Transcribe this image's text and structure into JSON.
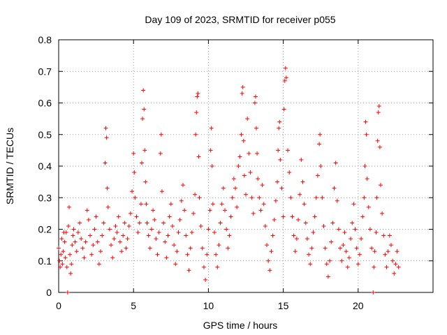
{
  "chart_data": {
    "type": "scatter",
    "title": "Day 109 of 2023, SRMTID for receiver p055",
    "xlabel": "GPS time / hours",
    "ylabel": "SRMTID / TECUs",
    "xlim": [
      0,
      25
    ],
    "ylim": [
      0,
      0.8
    ],
    "xticks": [
      0,
      5,
      10,
      15,
      20
    ],
    "xtick_labels": [
      "0",
      "5",
      "10",
      "15",
      "20"
    ],
    "yticks": [
      0,
      0.1,
      0.2,
      0.3,
      0.4,
      0.5,
      0.6,
      0.7,
      0.8
    ],
    "ytick_labels": [
      "0",
      "0.1",
      "0.2",
      "0.3",
      "0.4",
      "0.5",
      "0.6",
      "0.7",
      "0.8"
    ],
    "grid": true,
    "marker": "+",
    "color": "#ff0000",
    "series": [
      {
        "name": "SRMTID",
        "points": [
          [
            0.0,
            0.14
          ],
          [
            0.05,
            0.1
          ],
          [
            0.1,
            0.08
          ],
          [
            0.15,
            0.12
          ],
          [
            0.2,
            0.17
          ],
          [
            0.25,
            0.09
          ],
          [
            0.3,
            0.13
          ],
          [
            0.35,
            0.19
          ],
          [
            0.4,
            0.16
          ],
          [
            0.45,
            0.11
          ],
          [
            0.5,
            0.19
          ],
          [
            0.55,
            0.08
          ],
          [
            0.6,
            0.0
          ],
          [
            0.65,
            0.21
          ],
          [
            0.7,
            0.27
          ],
          [
            0.75,
            0.12
          ],
          [
            0.8,
            0.06
          ],
          [
            0.85,
            0.09
          ],
          [
            0.9,
            0.15
          ],
          [
            0.95,
            0.18
          ],
          [
            1.0,
            0.2
          ],
          [
            1.1,
            0.16
          ],
          [
            1.2,
            0.13
          ],
          [
            1.3,
            0.19
          ],
          [
            1.4,
            0.22
          ],
          [
            1.5,
            0.17
          ],
          [
            1.6,
            0.14
          ],
          [
            1.7,
            0.11
          ],
          [
            1.8,
            0.16
          ],
          [
            1.9,
            0.26
          ],
          [
            2.0,
            0.23
          ],
          [
            2.1,
            0.18
          ],
          [
            2.2,
            0.12
          ],
          [
            2.3,
            0.15
          ],
          [
            2.4,
            0.2
          ],
          [
            2.5,
            0.24
          ],
          [
            2.6,
            0.16
          ],
          [
            2.7,
            0.09
          ],
          [
            2.8,
            0.13
          ],
          [
            2.9,
            0.18
          ],
          [
            3.0,
            0.22
          ],
          [
            3.1,
            0.41
          ],
          [
            3.15,
            0.52
          ],
          [
            3.2,
            0.49
          ],
          [
            3.25,
            0.33
          ],
          [
            3.3,
            0.27
          ],
          [
            3.4,
            0.2
          ],
          [
            3.5,
            0.15
          ],
          [
            3.6,
            0.11
          ],
          [
            3.7,
            0.17
          ],
          [
            3.8,
            0.21
          ],
          [
            3.9,
            0.19
          ],
          [
            4.0,
            0.24
          ],
          [
            4.1,
            0.16
          ],
          [
            4.2,
            0.13
          ],
          [
            4.3,
            0.18
          ],
          [
            4.4,
            0.22
          ],
          [
            4.5,
            0.14
          ],
          [
            4.6,
            0.17
          ],
          [
            4.7,
            0.21
          ],
          [
            4.8,
            0.25
          ],
          [
            4.9,
            0.32
          ],
          [
            5.0,
            0.44
          ],
          [
            5.05,
            0.38
          ],
          [
            5.1,
            0.3
          ],
          [
            5.2,
            0.24
          ],
          [
            5.3,
            0.19
          ],
          [
            5.4,
            0.22
          ],
          [
            5.5,
            0.28
          ],
          [
            5.55,
            0.41
          ],
          [
            5.6,
            0.55
          ],
          [
            5.65,
            0.64
          ],
          [
            5.7,
            0.58
          ],
          [
            5.75,
            0.45
          ],
          [
            5.8,
            0.35
          ],
          [
            5.85,
            0.28
          ],
          [
            5.9,
            0.22
          ],
          [
            6.0,
            0.18
          ],
          [
            6.1,
            0.14
          ],
          [
            6.2,
            0.2
          ],
          [
            6.3,
            0.26
          ],
          [
            6.4,
            0.23
          ],
          [
            6.5,
            0.17
          ],
          [
            6.6,
            0.12
          ],
          [
            6.7,
            0.19
          ],
          [
            6.8,
            0.44
          ],
          [
            6.85,
            0.5
          ],
          [
            6.9,
            0.32
          ],
          [
            7.0,
            0.22
          ],
          [
            7.1,
            0.16
          ],
          [
            7.2,
            0.11
          ],
          [
            7.3,
            0.18
          ],
          [
            7.4,
            0.24
          ],
          [
            7.5,
            0.28
          ],
          [
            7.6,
            0.21
          ],
          [
            7.7,
            0.15
          ],
          [
            7.8,
            0.09
          ],
          [
            7.9,
            0.13
          ],
          [
            8.0,
            0.19
          ],
          [
            8.1,
            0.23
          ],
          [
            8.2,
            0.29
          ],
          [
            8.3,
            0.34
          ],
          [
            8.4,
            0.26
          ],
          [
            8.5,
            0.18
          ],
          [
            8.6,
            0.12
          ],
          [
            8.7,
            0.07
          ],
          [
            8.8,
            0.14
          ],
          [
            8.9,
            0.19
          ],
          [
            9.0,
            0.25
          ],
          [
            9.1,
            0.31
          ],
          [
            9.15,
            0.5
          ],
          [
            9.2,
            0.57
          ],
          [
            9.25,
            0.62
          ],
          [
            9.3,
            0.63
          ],
          [
            9.35,
            0.43
          ],
          [
            9.4,
            0.3
          ],
          [
            9.5,
            0.21
          ],
          [
            9.6,
            0.14
          ],
          [
            9.7,
            0.08
          ],
          [
            9.8,
            0.04
          ],
          [
            9.9,
            0.12
          ],
          [
            10.0,
            0.2
          ],
          [
            10.1,
            0.26
          ],
          [
            10.15,
            0.45
          ],
          [
            10.2,
            0.52
          ],
          [
            10.25,
            0.4
          ],
          [
            10.3,
            0.28
          ],
          [
            10.4,
            0.19
          ],
          [
            10.5,
            0.12
          ],
          [
            10.6,
            0.08
          ],
          [
            10.7,
            0.15
          ],
          [
            10.8,
            0.22
          ],
          [
            10.9,
            0.28
          ],
          [
            11.0,
            0.33
          ],
          [
            11.1,
            0.26
          ],
          [
            11.2,
            0.2
          ],
          [
            11.3,
            0.14
          ],
          [
            11.4,
            0.18
          ],
          [
            11.5,
            0.24
          ],
          [
            11.6,
            0.3
          ],
          [
            11.7,
            0.36
          ],
          [
            11.8,
            0.33
          ],
          [
            11.9,
            0.27
          ],
          [
            12.0,
            0.4
          ],
          [
            12.1,
            0.43
          ],
          [
            12.2,
            0.5
          ],
          [
            12.25,
            0.63
          ],
          [
            12.3,
            0.65
          ],
          [
            12.35,
            0.48
          ],
          [
            12.4,
            0.37
          ],
          [
            12.5,
            0.31
          ],
          [
            12.6,
            0.55
          ],
          [
            12.7,
            0.44
          ],
          [
            12.8,
            0.38
          ],
          [
            12.9,
            0.3
          ],
          [
            13.0,
            0.25
          ],
          [
            13.1,
            0.6
          ],
          [
            13.15,
            0.62
          ],
          [
            13.2,
            0.52
          ],
          [
            13.25,
            0.44
          ],
          [
            13.3,
            0.36
          ],
          [
            13.4,
            0.3
          ],
          [
            13.5,
            0.26
          ],
          [
            13.6,
            0.34
          ],
          [
            13.7,
            0.28
          ],
          [
            13.8,
            0.21
          ],
          [
            13.9,
            0.15
          ],
          [
            14.0,
            0.1
          ],
          [
            14.1,
            0.07
          ],
          [
            14.2,
            0.13
          ],
          [
            14.3,
            0.18
          ],
          [
            14.4,
            0.23
          ],
          [
            14.5,
            0.29
          ],
          [
            14.6,
            0.35
          ],
          [
            14.65,
            0.45
          ],
          [
            14.7,
            0.52
          ],
          [
            14.75,
            0.54
          ],
          [
            14.8,
            0.42
          ],
          [
            14.9,
            0.33
          ],
          [
            15.0,
            0.24
          ],
          [
            15.05,
            0.58
          ],
          [
            15.1,
            0.67
          ],
          [
            15.15,
            0.71
          ],
          [
            15.2,
            0.68
          ],
          [
            15.3,
            0.45
          ],
          [
            15.4,
            0.38
          ],
          [
            15.5,
            0.3
          ],
          [
            15.6,
            0.24
          ],
          [
            15.7,
            0.18
          ],
          [
            15.8,
            0.13
          ],
          [
            15.9,
            0.17
          ],
          [
            16.0,
            0.23
          ],
          [
            16.1,
            0.31
          ],
          [
            16.2,
            0.42
          ],
          [
            16.3,
            0.35
          ],
          [
            16.4,
            0.28
          ],
          [
            16.5,
            0.22
          ],
          [
            16.6,
            0.17
          ],
          [
            16.7,
            0.12
          ],
          [
            16.8,
            0.09
          ],
          [
            16.9,
            0.14
          ],
          [
            17.0,
            0.19
          ],
          [
            17.1,
            0.24
          ],
          [
            17.2,
            0.3
          ],
          [
            17.3,
            0.37
          ],
          [
            17.4,
            0.47
          ],
          [
            17.45,
            0.5
          ],
          [
            17.5,
            0.4
          ],
          [
            17.6,
            0.3
          ],
          [
            17.7,
            0.21
          ],
          [
            17.8,
            0.14
          ],
          [
            17.9,
            0.09
          ],
          [
            18.0,
            0.05
          ],
          [
            18.1,
            0.1
          ],
          [
            18.2,
            0.16
          ],
          [
            18.3,
            0.22
          ],
          [
            18.4,
            0.33
          ],
          [
            18.5,
            0.41
          ],
          [
            18.6,
            0.29
          ],
          [
            18.7,
            0.2
          ],
          [
            18.8,
            0.14
          ],
          [
            18.9,
            0.1
          ],
          [
            19.0,
            0.15
          ],
          [
            19.1,
            0.19
          ],
          [
            19.2,
            0.13
          ],
          [
            19.3,
            0.08
          ],
          [
            19.4,
            0.11
          ],
          [
            19.5,
            0.17
          ],
          [
            19.6,
            0.22
          ],
          [
            19.7,
            0.28
          ],
          [
            19.8,
            0.2
          ],
          [
            19.9,
            0.14
          ],
          [
            20.0,
            0.09
          ],
          [
            20.1,
            0.12
          ],
          [
            20.2,
            0.17
          ],
          [
            20.3,
            0.24
          ],
          [
            20.4,
            0.3
          ],
          [
            20.45,
            0.4
          ],
          [
            20.5,
            0.54
          ],
          [
            20.55,
            0.5
          ],
          [
            20.6,
            0.36
          ],
          [
            20.7,
            0.27
          ],
          [
            20.8,
            0.2
          ],
          [
            20.9,
            0.14
          ],
          [
            21.0,
            0.0
          ],
          [
            21.05,
            0.08
          ],
          [
            21.1,
            0.13
          ],
          [
            21.2,
            0.19
          ],
          [
            21.25,
            0.3
          ],
          [
            21.3,
            0.48
          ],
          [
            21.35,
            0.57
          ],
          [
            21.4,
            0.59
          ],
          [
            21.45,
            0.46
          ],
          [
            21.5,
            0.34
          ],
          [
            21.6,
            0.25
          ],
          [
            21.7,
            0.18
          ],
          [
            21.8,
            0.12
          ],
          [
            21.9,
            0.08
          ],
          [
            22.0,
            0.13
          ],
          [
            22.1,
            0.18
          ],
          [
            22.2,
            0.15
          ],
          [
            22.3,
            0.1
          ],
          [
            22.4,
            0.06
          ],
          [
            22.5,
            0.09
          ],
          [
            22.6,
            0.13
          ],
          [
            22.7,
            0.08
          ]
        ]
      }
    ]
  }
}
